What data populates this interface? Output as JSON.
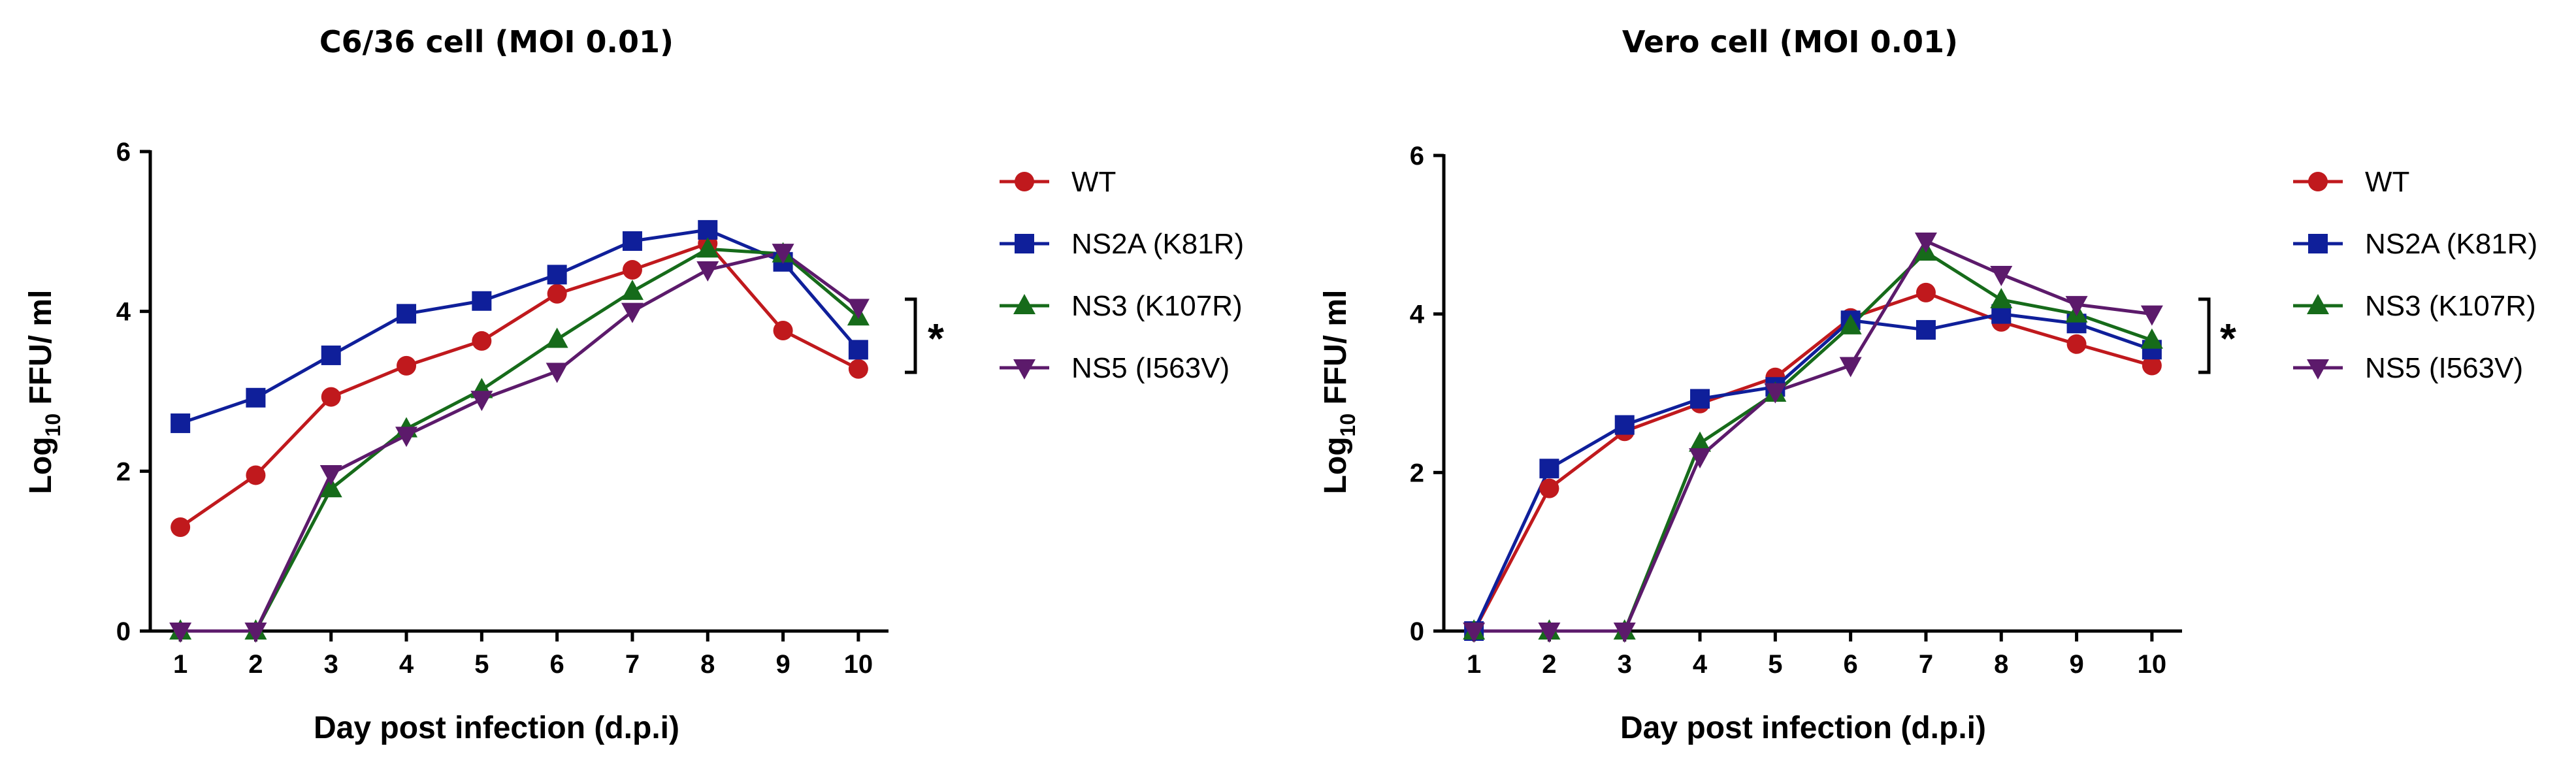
{
  "colors": {
    "WT": "#c0191d",
    "NS2A (K81R)": "#0f1f9a",
    "NS3 (K107R)": "#166b1a",
    "NS5 (I563V)": "#5c1a6b"
  },
  "chart_data": [
    {
      "type": "line",
      "title": "C6/36 cell (MOI 0.01)",
      "xlabel": "Day post infection (d.p.i)",
      "ylabel_main": "Log",
      "ylabel_sub": "10",
      "ylabel_rest": " FFU/ ml",
      "x": [
        1,
        2,
        3,
        4,
        5,
        6,
        7,
        8,
        9,
        10
      ],
      "xlim": [
        0.6,
        10.4
      ],
      "ylim": [
        0,
        6
      ],
      "yticks": [
        0,
        2,
        4,
        6
      ],
      "significance": "*",
      "series": [
        {
          "name": "WT",
          "marker": "circle",
          "values": [
            1.3,
            1.95,
            2.93,
            3.32,
            3.63,
            4.22,
            4.52,
            4.85,
            3.76,
            3.28
          ]
        },
        {
          "name": "NS2A (K81R)",
          "marker": "square",
          "values": [
            2.6,
            2.92,
            3.45,
            3.97,
            4.13,
            4.46,
            4.88,
            5.02,
            4.62,
            3.52
          ]
        },
        {
          "name": "NS3 (K107R)",
          "marker": "triangle-up",
          "values": [
            0.0,
            0.0,
            1.78,
            2.53,
            3.02,
            3.65,
            4.25,
            4.78,
            4.72,
            3.93
          ]
        },
        {
          "name": "NS5 (I563V)",
          "marker": "triangle-down",
          "values": [
            0.0,
            0.0,
            1.97,
            2.45,
            2.9,
            3.25,
            4.0,
            4.52,
            4.74,
            4.05
          ]
        }
      ]
    },
    {
      "type": "line",
      "title": "Vero cell (MOI 0.01)",
      "xlabel": "Day post infection (d.p.i)",
      "ylabel_main": "Log",
      "ylabel_sub": "10",
      "ylabel_rest": " FFU/ ml",
      "x": [
        1,
        2,
        3,
        4,
        5,
        6,
        7,
        8,
        9,
        10
      ],
      "xlim": [
        0.6,
        10.4
      ],
      "ylim": [
        0,
        6
      ],
      "yticks": [
        0,
        2,
        4,
        6
      ],
      "significance": "*",
      "series": [
        {
          "name": "WT",
          "marker": "circle",
          "values": [
            0.0,
            1.8,
            2.52,
            2.87,
            3.2,
            3.95,
            4.27,
            3.9,
            3.62,
            3.35
          ]
        },
        {
          "name": "NS2A (K81R)",
          "marker": "square",
          "values": [
            0.0,
            2.05,
            2.6,
            2.93,
            3.08,
            3.92,
            3.8,
            4.0,
            3.88,
            3.55
          ]
        },
        {
          "name": "NS3 (K107R)",
          "marker": "triangle-up",
          "values": [
            0.0,
            0.0,
            0.0,
            2.37,
            3.0,
            3.85,
            4.78,
            4.18,
            4.0,
            3.67
          ]
        },
        {
          "name": "NS5 (I563V)",
          "marker": "triangle-down",
          "values": [
            0.0,
            0.0,
            0.0,
            2.2,
            3.02,
            3.35,
            4.92,
            4.5,
            4.12,
            4.0
          ]
        }
      ]
    }
  ]
}
